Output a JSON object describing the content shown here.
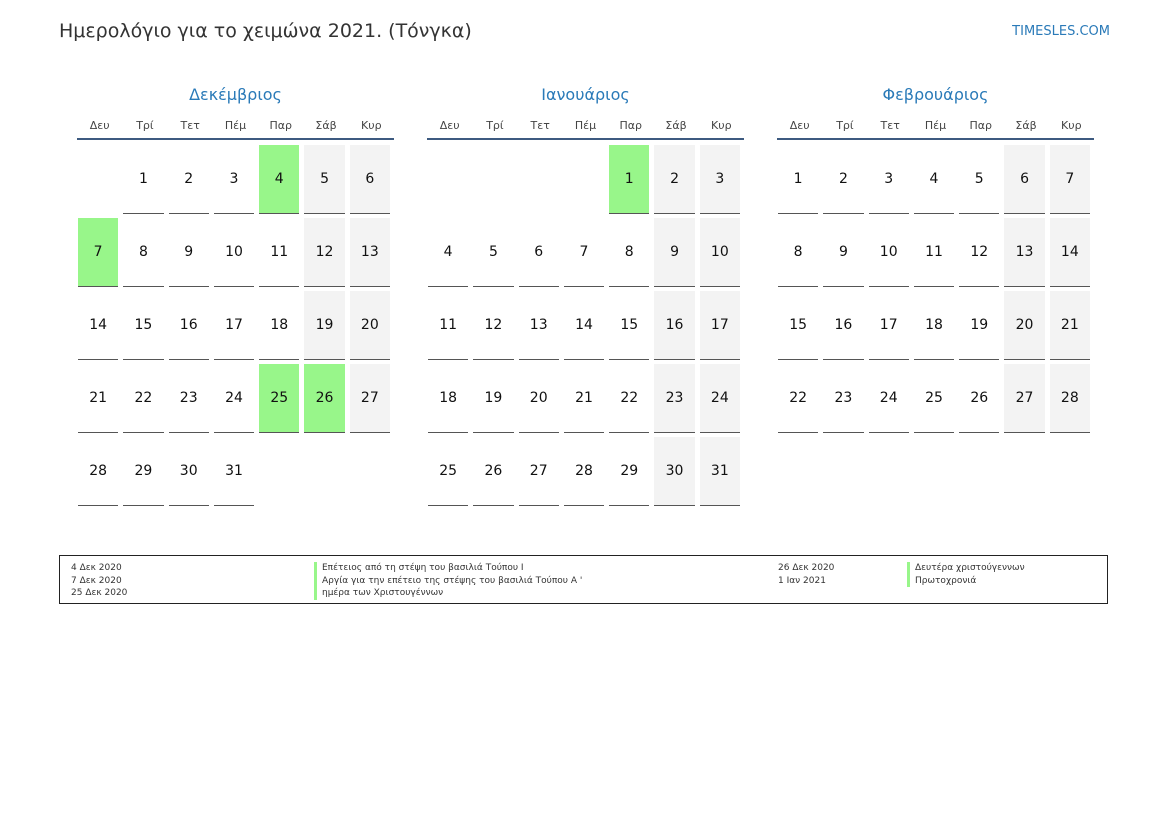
{
  "header": {
    "title": "Ημερολόγιο για το χειμώνα 2021. (Τόνγκα)",
    "site": "TIMESLES.COM"
  },
  "weekdays": [
    "Δευ",
    "Τρί",
    "Τετ",
    "Πέμ",
    "Παρ",
    "Σάβ",
    "Κυρ"
  ],
  "months": [
    {
      "name": "Δεκέμβριος",
      "offset": 1,
      "days": 31,
      "holidays": [
        4,
        7,
        25,
        26
      ]
    },
    {
      "name": "Ιανουάριος",
      "offset": 4,
      "days": 31,
      "holidays": [
        1
      ]
    },
    {
      "name": "Φεβρουάριος",
      "offset": 0,
      "days": 28,
      "holidays": []
    }
  ],
  "legend": {
    "left": [
      {
        "date": "4 Δεκ 2020",
        "name": "Επέτειος από τη στέψη του βασιλιά Τούπου I"
      },
      {
        "date": "7 Δεκ 2020",
        "name": "Αργία για την επέτειο της στέψης του βασιλιά Τούπου Α '"
      },
      {
        "date": "25 Δεκ 2020",
        "name": "ημέρα των Χριστουγέννων"
      }
    ],
    "right": [
      {
        "date": "26 Δεκ 2020",
        "name": "Δευτέρα χριστούγεννων"
      },
      {
        "date": "1 Ιαν 2021",
        "name": "Πρωτοχρονιά"
      }
    ]
  }
}
